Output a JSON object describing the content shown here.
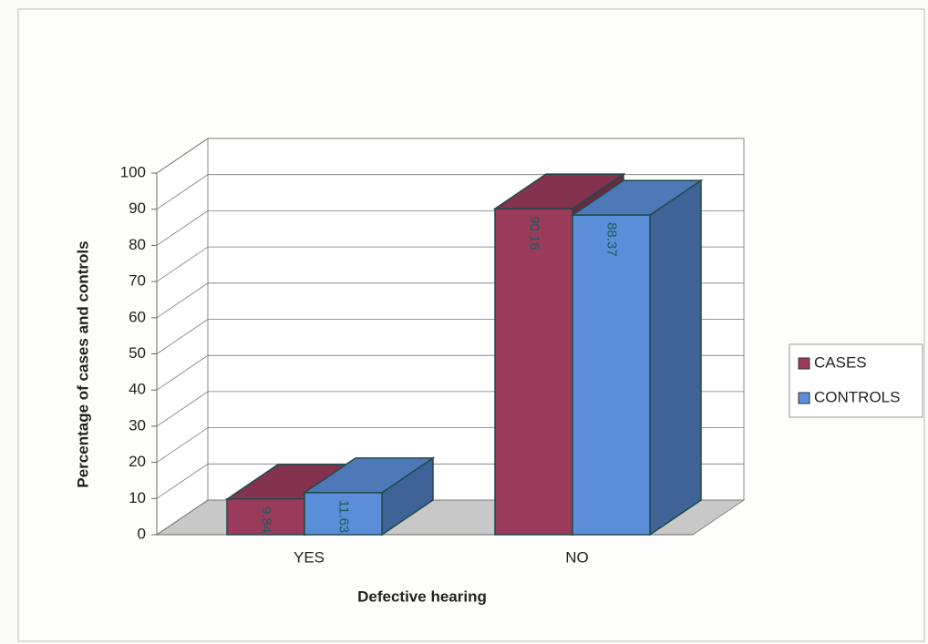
{
  "chart_data": {
    "type": "bar3d",
    "x_label": "Defective hearing",
    "y_label": "Percentage of cases and controls",
    "categories": [
      "YES",
      "NO"
    ],
    "series": [
      {
        "name": "CASES",
        "color": "#9b3b5c",
        "values": [
          9.84,
          90.16
        ]
      },
      {
        "name": "CONTROLS",
        "color": "#5b8ed8",
        "values": [
          11.63,
          88.37
        ]
      }
    ],
    "ylim": [
      0,
      100
    ],
    "yticks": [
      0,
      10,
      20,
      30,
      40,
      50,
      60,
      70,
      80,
      90,
      100
    ],
    "grid": true,
    "legend": "right"
  }
}
